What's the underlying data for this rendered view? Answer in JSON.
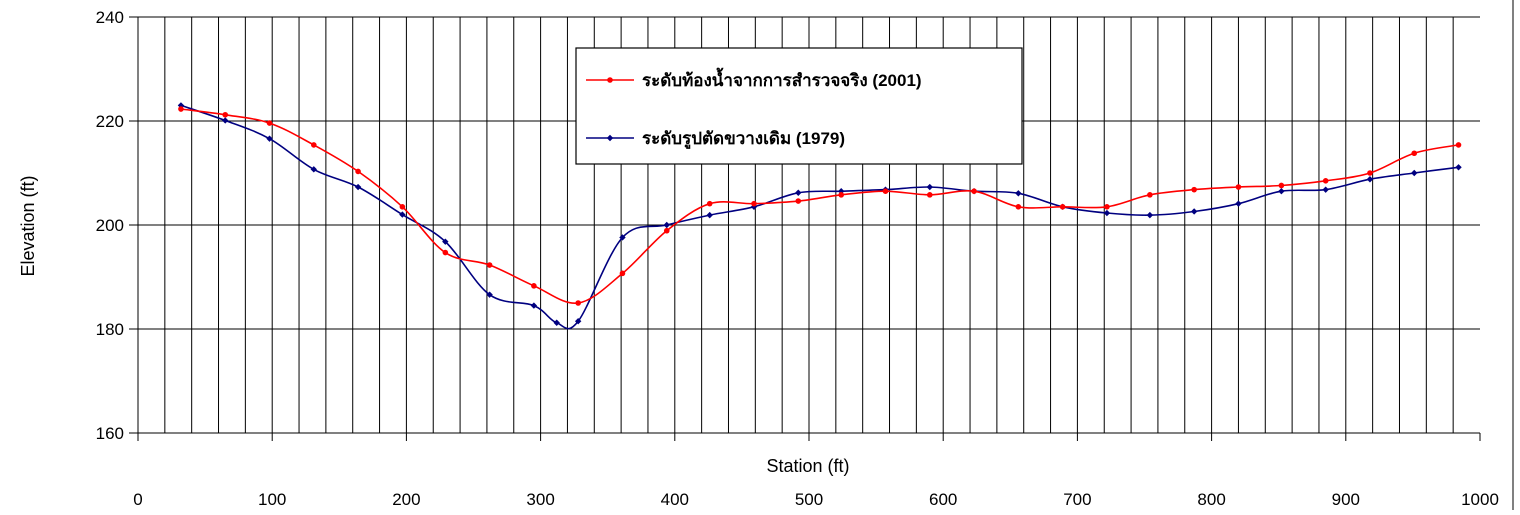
{
  "chart_data": {
    "type": "line",
    "title": "",
    "xlabel": "Station (ft)",
    "ylabel": "Elevation (ft)",
    "xlim": [
      0,
      1000
    ],
    "ylim": [
      160,
      240
    ],
    "x_major_ticks": [
      0,
      100,
      200,
      300,
      400,
      500,
      600,
      700,
      800,
      900,
      1000
    ],
    "x_minor_step": 20,
    "y_ticks": [
      160,
      180,
      200,
      220,
      240
    ],
    "grid": true,
    "legend_position": "top-center",
    "series": [
      {
        "name": "ระดับท้องน้ำจากการสำรวจจริง (2001)",
        "color": "#ff0000",
        "marker": "circle",
        "points": [
          [
            32,
            222.3
          ],
          [
            65,
            221.2
          ],
          [
            98,
            219.6
          ],
          [
            131,
            215.4
          ],
          [
            164,
            210.3
          ],
          [
            197,
            203.5
          ],
          [
            229,
            194.7
          ],
          [
            262,
            192.3
          ],
          [
            295,
            188.3
          ],
          [
            328,
            185.0
          ],
          [
            361,
            190.7
          ],
          [
            394,
            198.9
          ],
          [
            426,
            204.1
          ],
          [
            459,
            204.1
          ],
          [
            492,
            204.6
          ],
          [
            524,
            205.8
          ],
          [
            557,
            206.5
          ],
          [
            590,
            205.8
          ],
          [
            623,
            206.5
          ],
          [
            656,
            203.5
          ],
          [
            689,
            203.5
          ],
          [
            722,
            203.5
          ],
          [
            754,
            205.8
          ],
          [
            787,
            206.8
          ],
          [
            820,
            207.3
          ],
          [
            852,
            207.6
          ],
          [
            885,
            208.5
          ],
          [
            918,
            210.0
          ],
          [
            951,
            213.8
          ],
          [
            984,
            215.4
          ]
        ]
      },
      {
        "name": "ระดับรูปตัดขวางเดิม (1979)",
        "color": "#000080",
        "marker": "diamond",
        "points": [
          [
            32,
            223.0
          ],
          [
            65,
            220.1
          ],
          [
            98,
            216.6
          ],
          [
            131,
            210.7
          ],
          [
            164,
            207.3
          ],
          [
            197,
            202.0
          ],
          [
            229,
            196.8
          ],
          [
            262,
            186.6
          ],
          [
            295,
            184.5
          ],
          [
            312,
            181.2
          ],
          [
            328,
            181.5
          ],
          [
            361,
            197.6
          ],
          [
            394,
            200.0
          ],
          [
            426,
            201.9
          ],
          [
            459,
            203.5
          ],
          [
            492,
            206.2
          ],
          [
            524,
            206.5
          ],
          [
            557,
            206.8
          ],
          [
            590,
            207.3
          ],
          [
            623,
            206.5
          ],
          [
            656,
            206.1
          ],
          [
            689,
            203.5
          ],
          [
            722,
            202.3
          ],
          [
            754,
            201.9
          ],
          [
            787,
            202.6
          ],
          [
            820,
            204.1
          ],
          [
            852,
            206.5
          ],
          [
            885,
            206.8
          ],
          [
            918,
            208.8
          ],
          [
            951,
            210.0
          ],
          [
            984,
            211.1
          ]
        ]
      }
    ]
  }
}
